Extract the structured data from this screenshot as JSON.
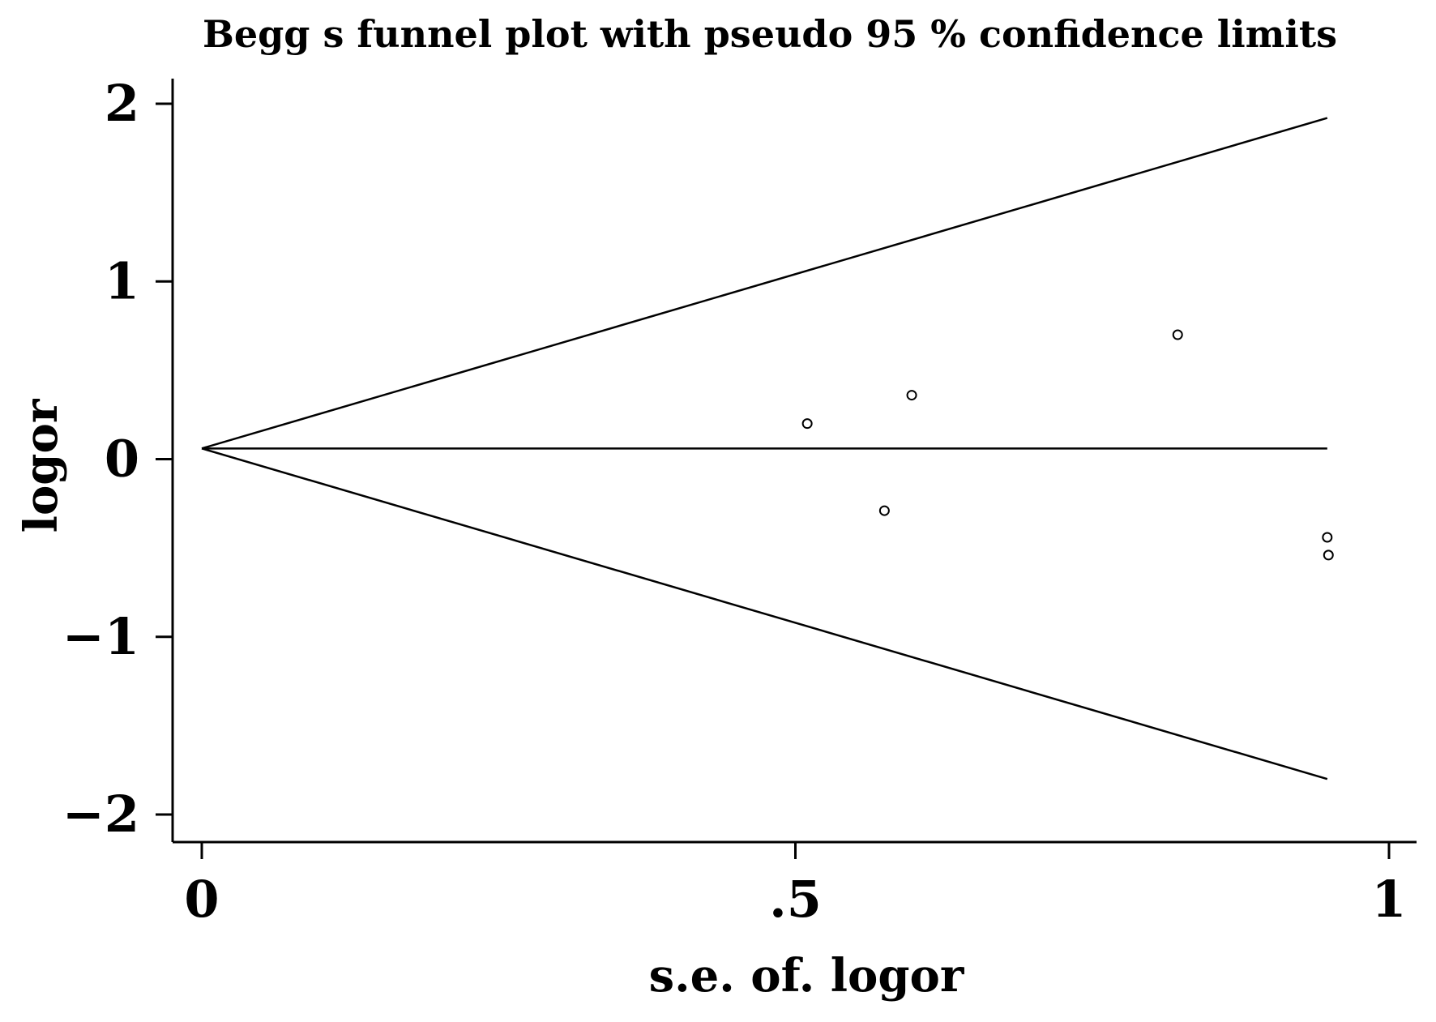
{
  "chart_data": {
    "type": "scatter",
    "title": "Begg  s funnel plot with pseudo 95 % confidence limits",
    "xlabel": "s.e. of. logor",
    "ylabel": "logor",
    "xlim": [
      0,
      1
    ],
    "ylim": [
      -2,
      2
    ],
    "grid": false,
    "xticks": [
      {
        "value": 0,
        "label": "0"
      },
      {
        "value": 0.5,
        "label": ".5"
      },
      {
        "value": 1,
        "label": "1"
      }
    ],
    "yticks": [
      {
        "value": 2,
        "label": "2"
      },
      {
        "value": 1,
        "label": "1"
      },
      {
        "value": 0,
        "label": "0"
      },
      {
        "value": -1,
        "label": "−1"
      },
      {
        "value": -2,
        "label": "−2"
      }
    ],
    "points": [
      {
        "x": 0.51,
        "y": 0.2
      },
      {
        "x": 0.575,
        "y": -0.29
      },
      {
        "x": 0.598,
        "y": 0.36
      },
      {
        "x": 0.822,
        "y": 0.7
      },
      {
        "x": 0.948,
        "y": -0.44
      },
      {
        "x": 0.949,
        "y": -0.54
      }
    ],
    "pooled_estimate": 0.06,
    "lines": [
      {
        "name": "upper limit",
        "x": [
          0,
          0.948
        ],
        "y": [
          0.06,
          1.92
        ]
      },
      {
        "name": "pooled estimate",
        "x": [
          0,
          0.948
        ],
        "y": [
          0.06,
          0.06
        ]
      },
      {
        "name": "lower limit",
        "x": [
          0,
          0.948
        ],
        "y": [
          0.06,
          -1.8
        ]
      }
    ]
  }
}
